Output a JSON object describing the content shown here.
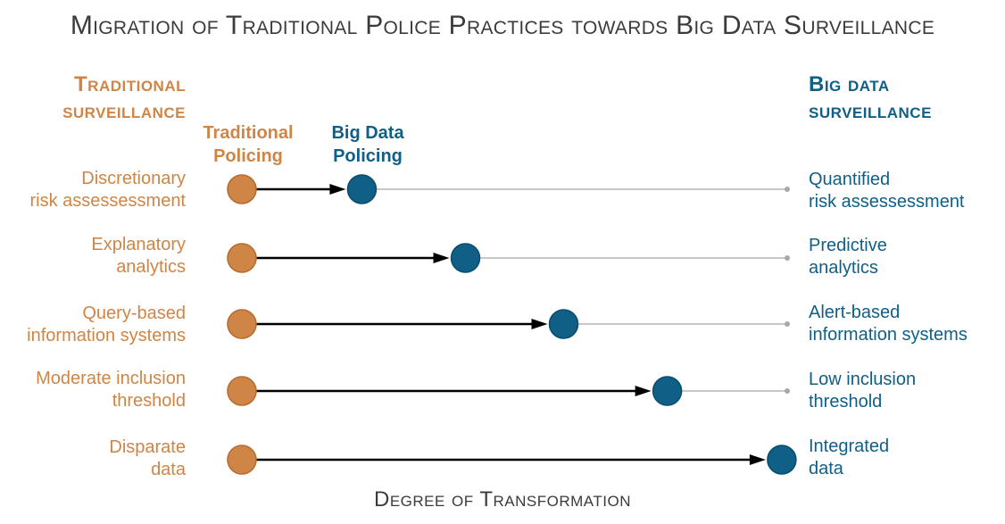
{
  "title": "Migration of Traditional Police Practices towards Big Data Surveillance",
  "left_heading": {
    "line1": "Traditional",
    "line2": "surveillance"
  },
  "right_heading": {
    "line1": "Big data",
    "line2": "surveillance"
  },
  "column_labels": {
    "traditional": {
      "line1": "Traditional",
      "line2": "Policing"
    },
    "big_data": {
      "line1": "Big Data",
      "line2": "Policing"
    }
  },
  "colors": {
    "traditional": "#cf8545",
    "big_data": "#0f5f86",
    "track": "#c8c8c8",
    "arrow": "#000000",
    "title": "#3b3b3b"
  },
  "rows": [
    {
      "left": [
        "Discretionary",
        "risk assessessment"
      ],
      "right": [
        "Quantified",
        "risk assessessment"
      ],
      "progress": 0.22
    },
    {
      "left": [
        "Explanatory",
        "analytics"
      ],
      "right": [
        "Predictive",
        "analytics"
      ],
      "progress": 0.41
    },
    {
      "left": [
        "Query-based",
        "information systems"
      ],
      "right": [
        "Alert-based",
        "information systems"
      ],
      "progress": 0.59
    },
    {
      "left": [
        "Moderate inclusion",
        "threshold"
      ],
      "right": [
        "Low inclusion",
        "threshold"
      ],
      "progress": 0.78
    },
    {
      "left": [
        "Disparate",
        "data"
      ],
      "right": [
        "Integrated",
        "data"
      ],
      "progress": 0.99
    }
  ],
  "footer": "Degree of Transformation"
}
